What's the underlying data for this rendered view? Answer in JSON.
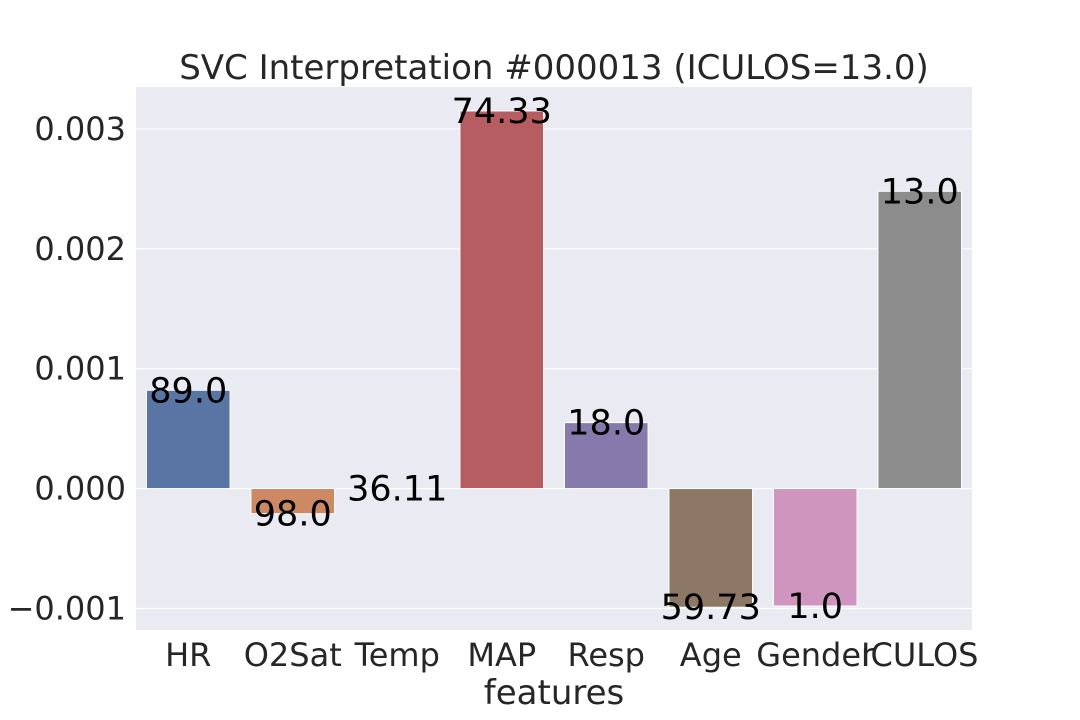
{
  "chart_data": {
    "type": "bar",
    "title": "SVC Interpretation #000013 (ICULOS=13.0)",
    "xlabel": "features",
    "ylabel": "",
    "categories": [
      "HR",
      "O2Sat",
      "Temp",
      "MAP",
      "Resp",
      "Age",
      "Gender",
      "ICULOS"
    ],
    "values": [
      0.00082,
      -0.00021,
      0.0,
      0.00315,
      0.00055,
      -0.00099,
      -0.00098,
      0.00248
    ],
    "bar_labels": [
      "89.0",
      "98.0",
      "36.11",
      "74.33",
      "18.0",
      "59.73",
      "1.0",
      "13.0"
    ],
    "colors": [
      "#5875a4",
      "#cc8963",
      "#5f9e6e",
      "#b55d60",
      "#857aab",
      "#8d7866",
      "#d095bf",
      "#8c8c8c"
    ],
    "ylim": [
      -0.00118,
      0.00335
    ],
    "yticks": [
      -0.001,
      0.0,
      0.001,
      0.002,
      0.003
    ],
    "ytick_labels": [
      "−0.001",
      "0.000",
      "0.001",
      "0.002",
      "0.003"
    ],
    "grid": true,
    "background": "#eaeaf2"
  }
}
